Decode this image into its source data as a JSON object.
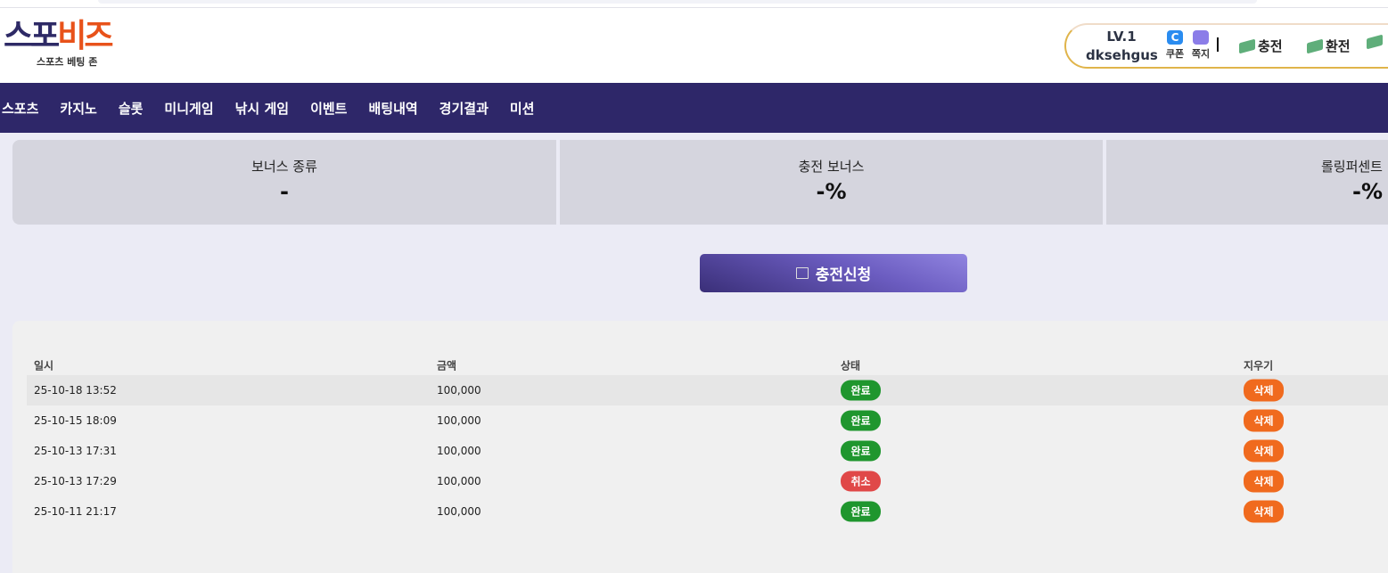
{
  "header": {
    "logo_part1": "스포",
    "logo_part2": "비즈",
    "logo_sub": "스포츠 베팅 존",
    "level": "LV.1",
    "username": "dksehgus",
    "coupon": "쿠폰",
    "message": "쪽지",
    "deposit": "충전",
    "withdraw": "환전",
    "colors": {
      "logo_dark": "#2e2a66",
      "logo_accent": "#e8521a"
    }
  },
  "nav": {
    "items": [
      "스포츠",
      "카지노",
      "슬롯",
      "미니게임",
      "낚시 게임",
      "이벤트",
      "배팅내역",
      "경기결과",
      "미션"
    ]
  },
  "bonus": [
    {
      "label": "보너스 종류",
      "value": "-"
    },
    {
      "label": "충전 보너스",
      "value": "-%"
    },
    {
      "label": "롤링퍼센트",
      "value": "-%"
    }
  ],
  "request_button": "충전신청",
  "table": {
    "headers": [
      "일시",
      "금액",
      "상태",
      "지우기"
    ],
    "rows": [
      {
        "date": "25-10-18 13:52",
        "amount": "100,000",
        "status": "완료",
        "status_color": "#1f962e",
        "action": "삭제"
      },
      {
        "date": "25-10-15 18:09",
        "amount": "100,000",
        "status": "완료",
        "status_color": "#1f962e",
        "action": "삭제"
      },
      {
        "date": "25-10-13 17:31",
        "amount": "100,000",
        "status": "완료",
        "status_color": "#1f962e",
        "action": "삭제"
      },
      {
        "date": "25-10-13 17:29",
        "amount": "100,000",
        "status": "취소",
        "status_color": "#e04848",
        "action": "삭제"
      },
      {
        "date": "25-10-11 21:17",
        "amount": "100,000",
        "status": "완료",
        "status_color": "#1f962e",
        "action": "삭제"
      }
    ],
    "delete_color": "#f06a1e"
  }
}
